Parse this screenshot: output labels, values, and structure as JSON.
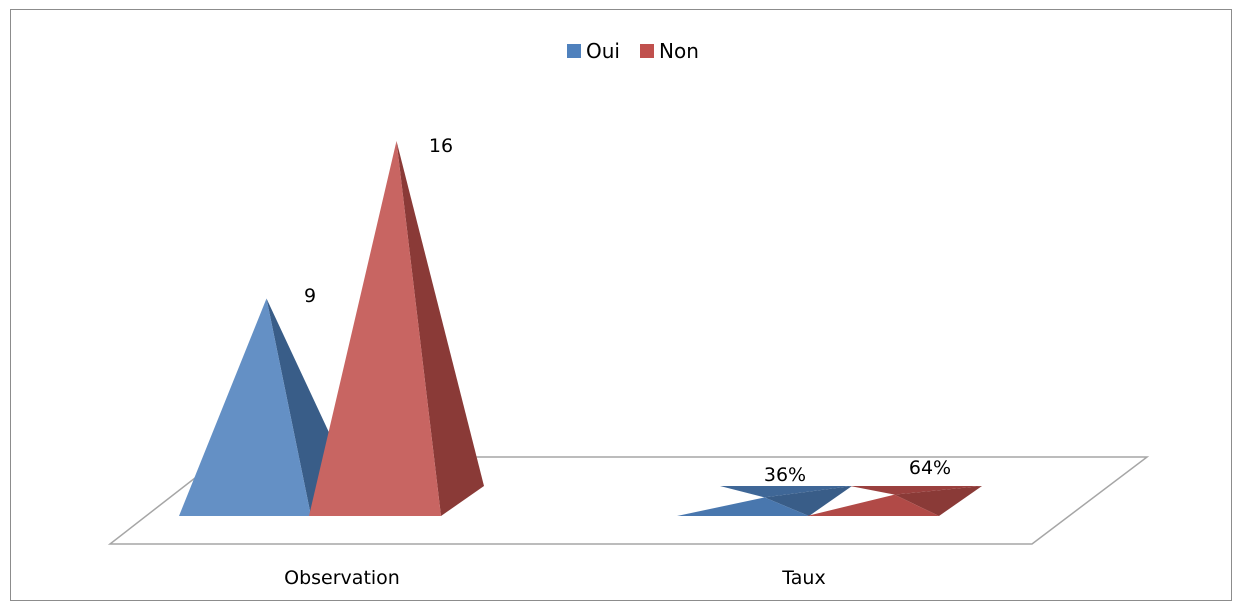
{
  "chart_data": {
    "type": "bar",
    "style": "3d-pyramid",
    "categories": [
      "Observation",
      "Taux"
    ],
    "series": [
      {
        "name": "Oui",
        "color": "#4f81bd",
        "values": [
          9,
          0.36
        ],
        "labels": [
          "9",
          "36%"
        ]
      },
      {
        "name": "Non",
        "color": "#c0504d",
        "values": [
          16,
          0.64
        ],
        "labels": [
          "16",
          "64%"
        ]
      }
    ],
    "legend": {
      "position": "top"
    },
    "grid": false
  }
}
